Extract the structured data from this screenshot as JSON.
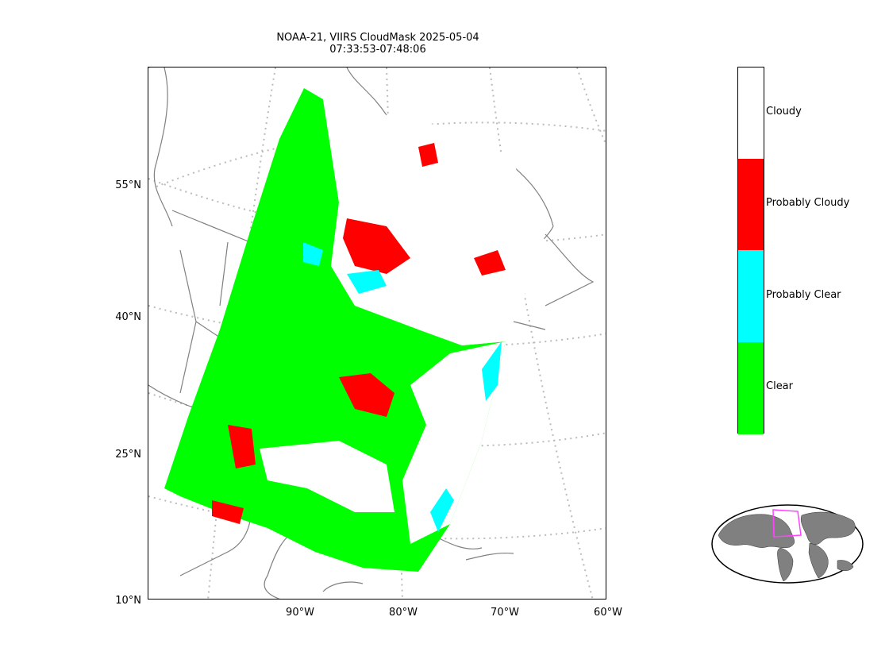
{
  "title": {
    "line1": "NOAA-21, VIIRS CloudMask 2025-05-04",
    "line2": "07:33:53-07:48:06"
  },
  "axes": {
    "lat_labels": [
      "55°N",
      "40°N",
      "25°N",
      "10°N"
    ],
    "lon_labels": [
      "90°W",
      "80°W",
      "70°W",
      "60°W"
    ]
  },
  "legend": {
    "classes": [
      {
        "label": "Cloudy",
        "color": "#ffffff"
      },
      {
        "label": "Probably Cloudy",
        "color": "#ff0000"
      },
      {
        "label": "Probably Clear",
        "color": "#00ffff"
      },
      {
        "label": "Clear",
        "color": "#00ff00"
      }
    ]
  },
  "colors": {
    "coastline": "#808080",
    "graticule": "#bbbbbb",
    "overview_box": "#ff44ff",
    "land_overview": "#808080"
  }
}
